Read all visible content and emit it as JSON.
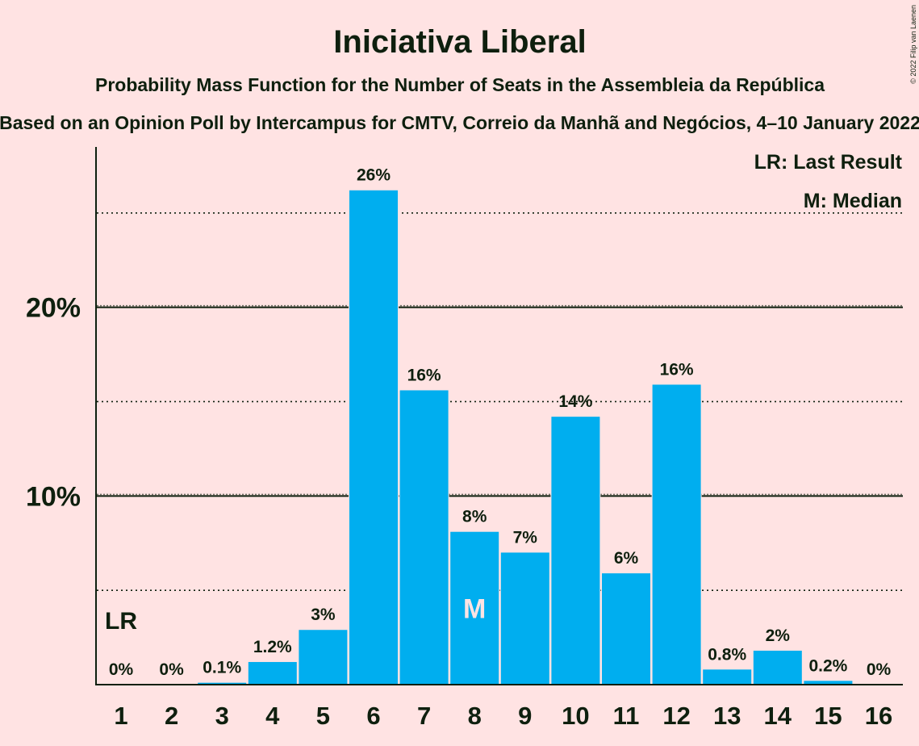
{
  "chart_data": {
    "type": "bar",
    "title": "Iniciativa Liberal",
    "subtitle": "Probability Mass Function for the Number of Seats in the Assembleia da República",
    "subtitle2": "Based on an Opinion Poll by Intercampus for CMTV, Correio da Manhã and Negócios, 4–10 January 2022",
    "copyright": "© 2022 Filip van Laenen",
    "categories": [
      "1",
      "2",
      "3",
      "4",
      "5",
      "6",
      "7",
      "8",
      "9",
      "10",
      "11",
      "12",
      "13",
      "14",
      "15",
      "16"
    ],
    "values": [
      0,
      0,
      0.1,
      1.2,
      2.9,
      26.2,
      15.6,
      8.1,
      7.0,
      14.2,
      5.9,
      15.9,
      0.8,
      1.8,
      0.2,
      0
    ],
    "value_labels": [
      "0%",
      "0%",
      "0.1%",
      "1.2%",
      "3%",
      "26%",
      "16%",
      "8%",
      "7%",
      "14%",
      "6%",
      "16%",
      "0.8%",
      "2%",
      "0.2%",
      "0%"
    ],
    "ylim": [
      0,
      28.5
    ],
    "y_ticks": [
      {
        "value": 10,
        "label": "10%"
      },
      {
        "value": 20,
        "label": "20%"
      }
    ],
    "minor_gridlines": [
      5,
      15,
      25
    ],
    "last_result_index": 0,
    "last_result_marker": "LR",
    "median_index": 7,
    "median_marker": "M",
    "legend": [
      "LR: Last Result",
      "M: Median"
    ],
    "legend_position": "top-right",
    "bar_color": "#00AEEF",
    "background_color": "#FFE3E3",
    "text_color": "#0E1F0E"
  }
}
